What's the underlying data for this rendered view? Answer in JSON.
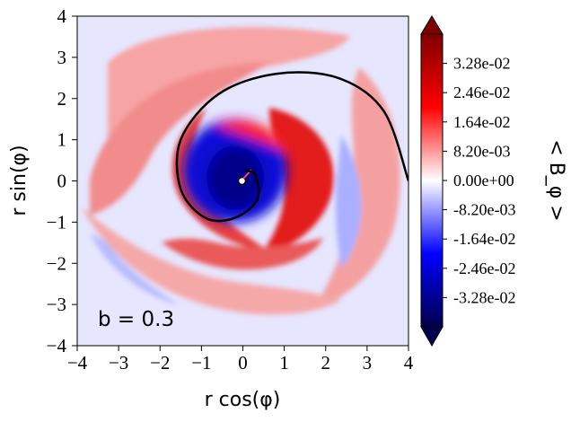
{
  "chart_data": {
    "type": "heatmap",
    "title": "",
    "xlabel": "r cos(φ)",
    "ylabel": "r sin(φ)",
    "xlim": [
      -4,
      4
    ],
    "ylim": [
      -4,
      4
    ],
    "x_ticks": [
      "−4",
      "−3",
      "−2",
      "−1",
      "0",
      "1",
      "2",
      "3",
      "4"
    ],
    "y_ticks": [
      "4",
      "3",
      "2",
      "1",
      "0",
      "−1",
      "−2",
      "−3",
      "−4"
    ],
    "annotation": "b = 0.3",
    "colorbar": {
      "label": "< B_φ >",
      "ticks": [
        "3.28e-02",
        "2.46e-02",
        "1.64e-02",
        "8.20e-03",
        "0.00e+00",
        "-8.20e-03",
        "-1.64e-02",
        "-2.46e-02",
        "-3.28e-02"
      ],
      "tick_values": [
        0.0328,
        0.0246,
        0.0164,
        0.0082,
        0.0,
        -0.0082,
        -0.0164,
        -0.0246,
        -0.0328
      ],
      "range": [
        -0.041,
        0.041
      ],
      "colormap": "seismic",
      "colors": {
        "low": "#00004c",
        "mid": "#ffffff",
        "high": "#800000"
      },
      "extend": "both"
    },
    "overlay_curve": {
      "description_free": true,
      "color": "#000000",
      "points": [
        [
          4.0,
          0.0
        ],
        [
          3.4,
          1.7
        ],
        [
          2.3,
          2.5
        ],
        [
          0.8,
          2.6
        ],
        [
          -0.6,
          2.1
        ],
        [
          -1.5,
          1.0
        ],
        [
          -1.5,
          -0.2
        ],
        [
          -0.9,
          -0.9
        ],
        [
          -0.2,
          -0.9
        ],
        [
          0.35,
          -0.45
        ],
        [
          0.3,
          0.15
        ],
        [
          0.05,
          0.25
        ]
      ]
    },
    "grid": false
  }
}
